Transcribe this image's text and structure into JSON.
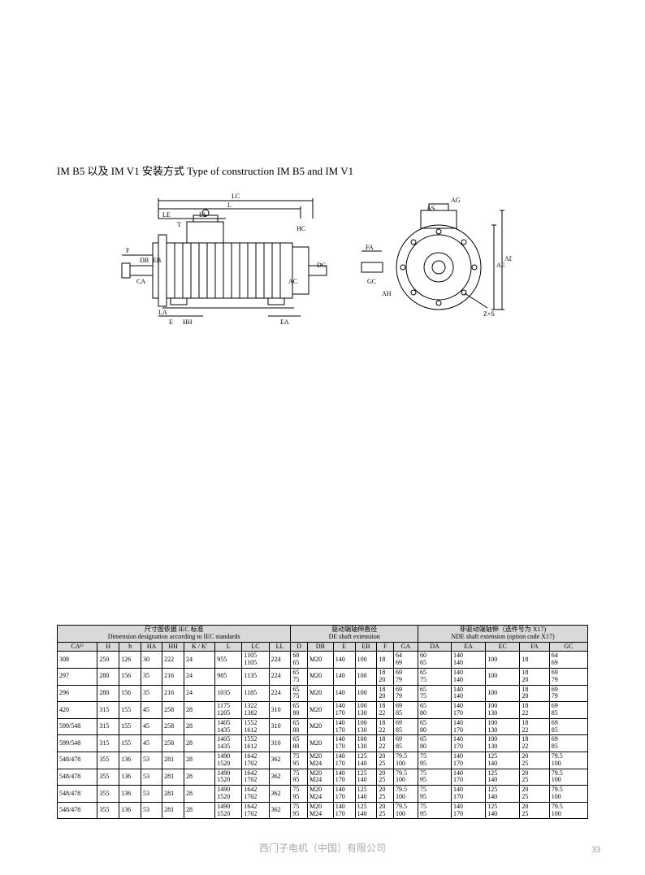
{
  "title": "IM B5 以及 IM V1 安装方式 Type of construction IM B5 and IM V1",
  "footer": "西门子电机（中国）有限公司",
  "page_number": "33",
  "diagram": {
    "labels": [
      "LC",
      "L",
      "LE",
      "LL",
      "T",
      "F",
      "DB",
      "EB",
      "CA",
      "E",
      "HH",
      "LA",
      "EA",
      "HC",
      "AC",
      "DC",
      "FA",
      "GC",
      "AH",
      "AG",
      "AS",
      "AE",
      "AD",
      "Z×S"
    ],
    "stroke": "#000000",
    "line_width": 1
  },
  "table": {
    "section_headers": {
      "dim_cn": "尺寸图依据 IEC 标准",
      "dim_en": "Dimension designation according to IEC standards",
      "de_cn": "驱动端轴伸直径",
      "de_en": "DE shaft extensiion",
      "nde_cn": "非驱动端轴伸（选件号为 X17)",
      "nde_en": "NDE shaft extension (option code X17)"
    },
    "columns": [
      "CA¹⁾",
      "H",
      "h",
      "HA",
      "HH",
      "K / K'",
      "L",
      "LC",
      "LL",
      "D",
      "DB",
      "E",
      "EB",
      "F",
      "GA",
      "DA",
      "EA",
      "EC",
      "FA",
      "GC"
    ],
    "rows": [
      [
        "308",
        "250",
        "126",
        "30",
        "222",
        "24",
        "955",
        "1105\n1105",
        "224",
        "60\n65",
        "M20",
        "140",
        "100",
        "18",
        "64\n69",
        "60\n65",
        "140\n140",
        "100",
        "18",
        "64\n69"
      ],
      [
        "297",
        "280",
        "156",
        "35",
        "216",
        "24",
        "985",
        "1135",
        "224",
        "65\n75",
        "M20",
        "140",
        "100",
        "18\n20",
        "69\n79",
        "65\n75",
        "140\n140",
        "100",
        "18\n20",
        "69\n79"
      ],
      [
        "296",
        "280",
        "156",
        "35",
        "216",
        "24",
        "1035",
        "1185",
        "224",
        "65\n75",
        "M20",
        "140",
        "100",
        "18\n20",
        "69\n79",
        "65\n75",
        "140\n140",
        "100",
        "18\n20",
        "69\n79"
      ],
      [
        "420",
        "315",
        "155",
        "45",
        "258",
        "28",
        "1175\n1205",
        "1322\n1382",
        "310",
        "65\n80",
        "M20",
        "140\n170",
        "100\n130",
        "18\n22",
        "69\n85",
        "65\n80",
        "140\n170",
        "100\n130",
        "18\n22",
        "69\n85"
      ],
      [
        "599/548",
        "315",
        "155",
        "45",
        "258",
        "28",
        "1405\n1435",
        "1552\n1612",
        "310",
        "65\n80",
        "M20",
        "140\n170",
        "100\n130",
        "18\n22",
        "69\n85",
        "65\n80",
        "140\n170",
        "100\n130",
        "18\n22",
        "69\n85"
      ],
      [
        "599/548",
        "315",
        "155",
        "45",
        "258",
        "28",
        "1405\n1435",
        "1552\n1612",
        "310",
        "65\n80",
        "M20",
        "140\n170",
        "100\n130",
        "18\n22",
        "69\n85",
        "65\n80",
        "140\n170",
        "100\n130",
        "18\n22",
        "69\n85"
      ],
      [
        "548/478",
        "355",
        "136",
        "53",
        "281",
        "28",
        "1490\n1520",
        "1642\n1702",
        "362",
        "75\n95",
        "M20\nM24",
        "140\n170",
        "125\n140",
        "20\n25",
        "79.5\n100",
        "75\n95",
        "140\n170",
        "125\n140",
        "20\n25",
        "79.5\n100"
      ],
      [
        "548/478",
        "355",
        "136",
        "53",
        "281",
        "28",
        "1490\n1520",
        "1642\n1702",
        "362",
        "75\n95",
        "M20\nM24",
        "140\n170",
        "125\n140",
        "20\n25",
        "79.5\n100",
        "75\n95",
        "140\n170",
        "125\n140",
        "20\n25",
        "79.5\n100"
      ],
      [
        "548/478",
        "355",
        "136",
        "53",
        "281",
        "28",
        "1490\n1520",
        "1642\n1702",
        "362",
        "75\n95",
        "M20\nM24",
        "140\n170",
        "125\n140",
        "20\n25",
        "79.5\n100",
        "75\n95",
        "140\n170",
        "125\n140",
        "20\n25",
        "79.5\n100"
      ],
      [
        "548/478",
        "355",
        "136",
        "53",
        "281",
        "28",
        "1490\n1520",
        "1642\n1702",
        "362",
        "75\n95",
        "M20\nM24",
        "140\n170",
        "125\n140",
        "20\n25",
        "79.5\n100",
        "75\n95",
        "140\n170",
        "125\n140",
        "20\n25",
        "79.5\n100"
      ]
    ]
  }
}
